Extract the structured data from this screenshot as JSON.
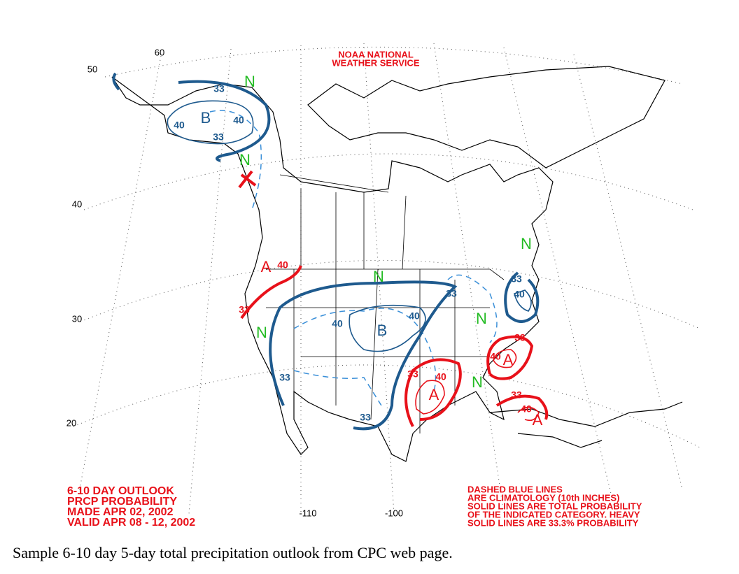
{
  "header": {
    "lines": [
      "NOAA NATIONAL",
      "WEATHER SERVICE"
    ]
  },
  "outlook": {
    "lines": [
      "6-10 DAY OUTLOOK",
      "PRCP PROBABILITY",
      "MADE  APR 02, 2002",
      "VALID  APR 08 - 12, 2002"
    ]
  },
  "legend": {
    "lines": [
      "DASHED BLUE LINES",
      "ARE CLIMATOLOGY (10th INCHES)",
      "SOLID LINES ARE TOTAL PROBABILITY",
      "OF THE INDICATED CATEGORY. HEAVY",
      "SOLID LINES ARE 33.3% PROBABILITY"
    ]
  },
  "latitude_labels": [
    "60",
    "50",
    "40",
    "30",
    "20"
  ],
  "longitude_labels": [
    "-110",
    "-100"
  ],
  "region_labels": [
    "B",
    "N",
    "N",
    "N",
    "N",
    "N",
    "N",
    "N",
    "B",
    "A",
    "A",
    "A",
    "A"
  ],
  "contour_labels": [
    "33",
    "40",
    "40",
    "33",
    "40",
    "33",
    "33",
    "40",
    "40",
    "33",
    "33",
    "33",
    "40",
    "33",
    "40",
    "33",
    "40",
    "33",
    "40"
  ],
  "caption": "Sample 6-10 day 5-day total precipitation outlook from CPC web page."
}
